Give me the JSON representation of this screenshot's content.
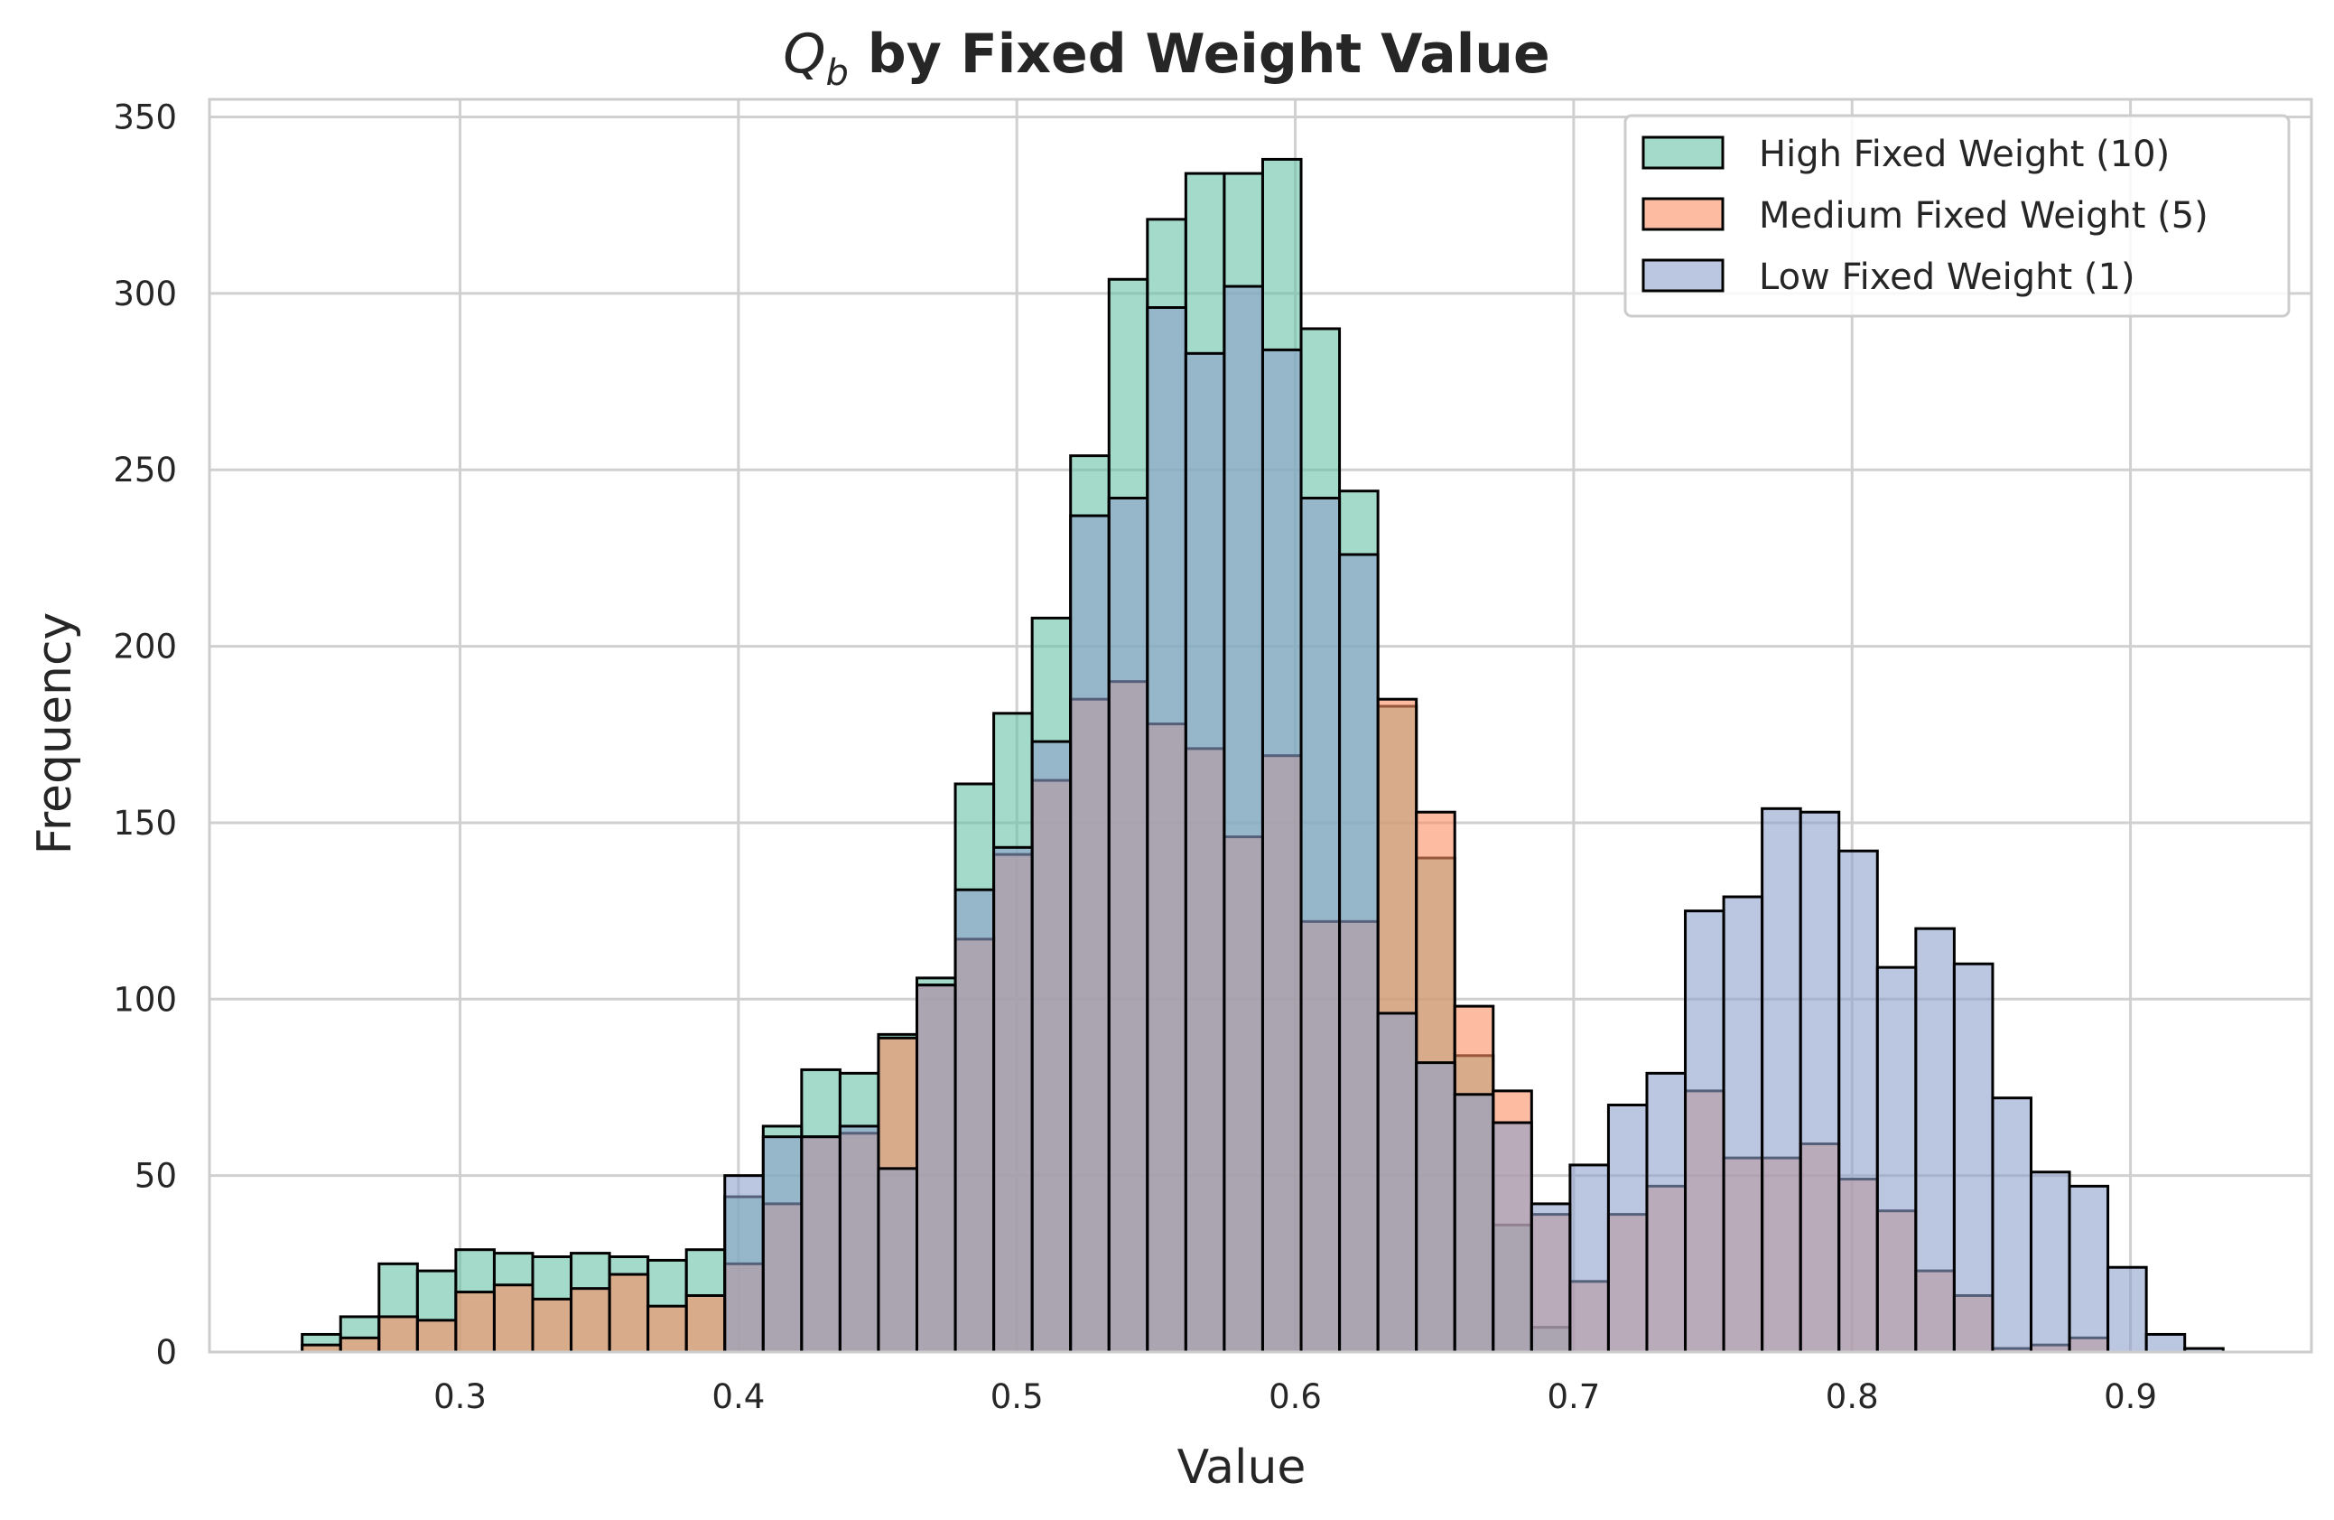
{
  "chart_data": {
    "type": "histogram",
    "title_symbol": "Q",
    "title_subscript": "b",
    "title_rest": " by Fixed Weight Value",
    "xlabel": "Value",
    "ylabel": "Frequency",
    "xlim": [
      0.21,
      0.965
    ],
    "ylim": [
      0,
      355
    ],
    "x_ticks": [
      0.3,
      0.4,
      0.5,
      0.6,
      0.7,
      0.8,
      0.9
    ],
    "x_tick_labels": [
      "0.3",
      "0.4",
      "0.5",
      "0.6",
      "0.7",
      "0.8",
      "0.9"
    ],
    "y_ticks": [
      0,
      50,
      100,
      150,
      200,
      250,
      300,
      350
    ],
    "y_tick_labels": [
      "0",
      "50",
      "100",
      "150",
      "200",
      "250",
      "300",
      "350"
    ],
    "grid": true,
    "legend_position": "top-right",
    "bins_start": 0.2433,
    "bin_width": 0.0138,
    "bin_count": 51,
    "series": [
      {
        "name": "High Fixed Weight (10)",
        "color": "#66c2a5",
        "values": [
          5,
          10,
          25,
          23,
          29,
          28,
          27,
          28,
          27,
          26,
          29,
          44,
          64,
          80,
          79,
          90,
          106,
          161,
          181,
          208,
          254,
          304,
          321,
          334,
          334,
          338,
          290,
          244,
          183,
          140,
          84,
          36,
          7,
          0,
          0,
          0,
          0,
          0,
          0,
          0,
          0,
          0,
          0,
          0,
          0,
          0,
          0,
          0,
          0,
          0,
          0
        ]
      },
      {
        "name": "Medium Fixed Weight (5)",
        "color": "#fc8d62",
        "values": [
          2,
          4,
          10,
          9,
          17,
          19,
          15,
          18,
          22,
          13,
          16,
          25,
          42,
          61,
          62,
          89,
          104,
          117,
          141,
          162,
          185,
          190,
          178,
          171,
          146,
          169,
          122,
          122,
          185,
          153,
          98,
          74,
          39,
          20,
          39,
          47,
          74,
          55,
          55,
          59,
          49,
          40,
          23,
          16,
          1,
          2,
          4,
          0,
          0,
          0,
          0
        ]
      },
      {
        "name": "Low Fixed Weight (1)",
        "color": "#8da0cb",
        "values": [
          0,
          0,
          0,
          0,
          0,
          0,
          0,
          0,
          0,
          0,
          0,
          50,
          61,
          61,
          64,
          52,
          104,
          131,
          143,
          173,
          237,
          242,
          296,
          283,
          302,
          284,
          242,
          226,
          96,
          82,
          73,
          65,
          42,
          53,
          70,
          79,
          125,
          129,
          154,
          153,
          142,
          109,
          120,
          110,
          72,
          51,
          47,
          24,
          5,
          1,
          0
        ]
      }
    ]
  }
}
